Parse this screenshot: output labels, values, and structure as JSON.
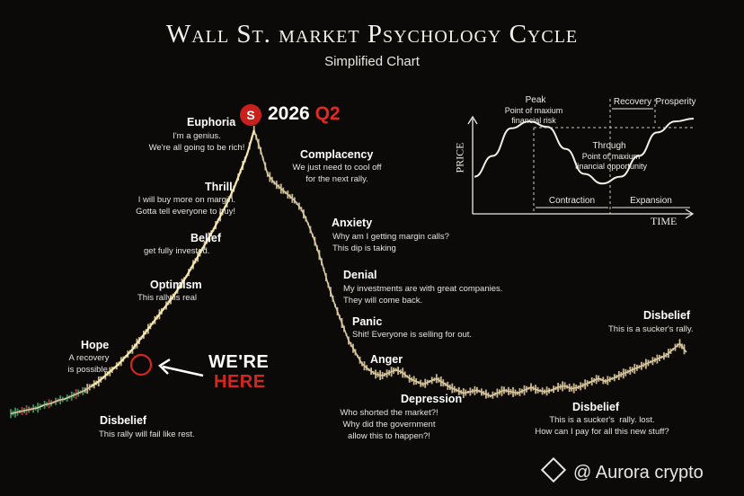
{
  "title": "Wall St. market Psychology Cycle",
  "subtitle": "Simplified Chart",
  "badge": {
    "letter": "S",
    "year": "2026",
    "quarter": "Q2"
  },
  "marker": {
    "line1": "WE'RE",
    "line2": "HERE"
  },
  "watermark": "@ Aurora crypto",
  "stages": [
    {
      "key": "disbelief1",
      "label": "Disbelief",
      "desc": "This rally will fail like rest."
    },
    {
      "key": "hope",
      "label": "Hope",
      "desc": "A recovery\nis possible."
    },
    {
      "key": "optimism",
      "label": "Optimism",
      "desc": "This rally is real"
    },
    {
      "key": "belief",
      "label": "Belief",
      "desc": "get fully invested."
    },
    {
      "key": "thrill",
      "label": "Thrill",
      "desc": "I will buy more on margin.\nGotta tell everyone to buy!"
    },
    {
      "key": "euphoria",
      "label": "Euphoria",
      "desc": "I'm a genius.\nWe're all going to be rich!"
    },
    {
      "key": "complacency",
      "label": "Complacency",
      "desc": "We just need to cool off\nfor the next rally."
    },
    {
      "key": "anxiety",
      "label": "Anxiety",
      "desc": "Why am I getting margin calls?\nThis dip is taking"
    },
    {
      "key": "denial",
      "label": "Denial",
      "desc": "My investments are with great companies.\nThey will come back."
    },
    {
      "key": "panic",
      "label": "Panic",
      "desc": "Shit! Everyone is selling for out."
    },
    {
      "key": "anger",
      "label": "Anger",
      "desc": ""
    },
    {
      "key": "depression",
      "label": "Depression",
      "desc": "Who shorted the market?!\nWhy did the government\nallow this to happen?!"
    },
    {
      "key": "disbelief2",
      "label": "Disbelief",
      "desc": "This is a sucker's  rally. lost.\nHow can I pay for all this new stuff?"
    },
    {
      "key": "disbelief3",
      "label": "Disbelief",
      "desc": "This is a sucker's rally."
    }
  ],
  "inset": {
    "x_axis": "TIME",
    "y_axis": "PRICE",
    "peak": {
      "label": "Peak",
      "desc": "Point of maxium\nfinancial risk"
    },
    "trough": {
      "label": "Through",
      "desc": "Point of maxium\nfinancial opportunity"
    },
    "phases": [
      "Recovery",
      "Prosperity",
      "Contraction",
      "Expansion"
    ]
  },
  "colors": {
    "background": "#0b0a09",
    "price_line": "#d9c9a3",
    "highlight_line": "#f5e9b0",
    "accent_red": "#d5251f"
  },
  "chart_data": {
    "type": "line",
    "title": "Wall St. market Psychology Cycle",
    "subtitle": "Simplified Chart",
    "xlabel": "",
    "ylabel": "",
    "axes_visible": false,
    "grid": false,
    "x": [
      0,
      5,
      10,
      15,
      20,
      25,
      30,
      35,
      40,
      45,
      50,
      55,
      60,
      65,
      70,
      75,
      80,
      85,
      90,
      95,
      100,
      105,
      110,
      115,
      120,
      125,
      130,
      135,
      140,
      145,
      150,
      155,
      160,
      165,
      170,
      175,
      180,
      185,
      190,
      195,
      200,
      205,
      210,
      215,
      220,
      225,
      230,
      235,
      240,
      245,
      250,
      255,
      260,
      265,
      270,
      275,
      280,
      285,
      290,
      295,
      300,
      305,
      310,
      315,
      320,
      325,
      330,
      335,
      340,
      345,
      350,
      355,
      360,
      365,
      370,
      375,
      380,
      385,
      390,
      395,
      400,
      405,
      410,
      415,
      420,
      425,
      430,
      435,
      440,
      445,
      450,
      455,
      460,
      465,
      470,
      475,
      480,
      485,
      490,
      495,
      500
    ],
    "values": [
      3,
      3.5,
      4,
      4.5,
      5,
      6,
      6.5,
      7.5,
      8,
      9,
      10,
      11,
      12.5,
      14,
      16,
      18,
      20,
      22.5,
      25,
      28,
      31,
      34,
      37,
      40,
      43,
      46.5,
      50,
      54,
      58,
      62,
      66,
      70.5,
      75,
      80,
      86,
      92,
      100,
      93,
      85,
      82,
      80,
      78,
      76,
      73,
      68,
      62,
      55,
      47,
      40,
      34,
      28,
      24,
      20,
      18,
      16.5,
      16,
      17,
      18,
      17,
      15,
      14,
      13,
      14,
      15,
      13.5,
      12,
      11,
      10,
      10.5,
      11,
      10,
      9,
      10,
      11,
      10.5,
      10,
      11,
      12,
      11,
      10.5,
      11,
      12,
      12.5,
      11.5,
      12,
      13,
      14,
      15,
      14,
      15,
      16,
      17,
      18,
      19,
      20,
      21,
      22,
      23,
      25,
      27,
      24
    ],
    "annotations": [
      "Disbelief",
      "Hope",
      "Optimism",
      "Belief",
      "Thrill",
      "Euphoria",
      "Complacency",
      "Anxiety",
      "Denial",
      "Panic",
      "Anger",
      "Depression",
      "Disbelief",
      "Disbelief"
    ],
    "marker_at": 60,
    "inset_chart": {
      "type": "line",
      "xlabel": "TIME",
      "ylabel": "PRICE",
      "x": [
        0,
        1,
        2,
        3,
        4,
        5,
        6,
        7,
        8,
        9,
        10,
        11,
        12
      ],
      "values": [
        1,
        2.5,
        4.5,
        5,
        4.6,
        3,
        1.2,
        0.5,
        1,
        2.5,
        4.2,
        5,
        5.2
      ]
    }
  }
}
